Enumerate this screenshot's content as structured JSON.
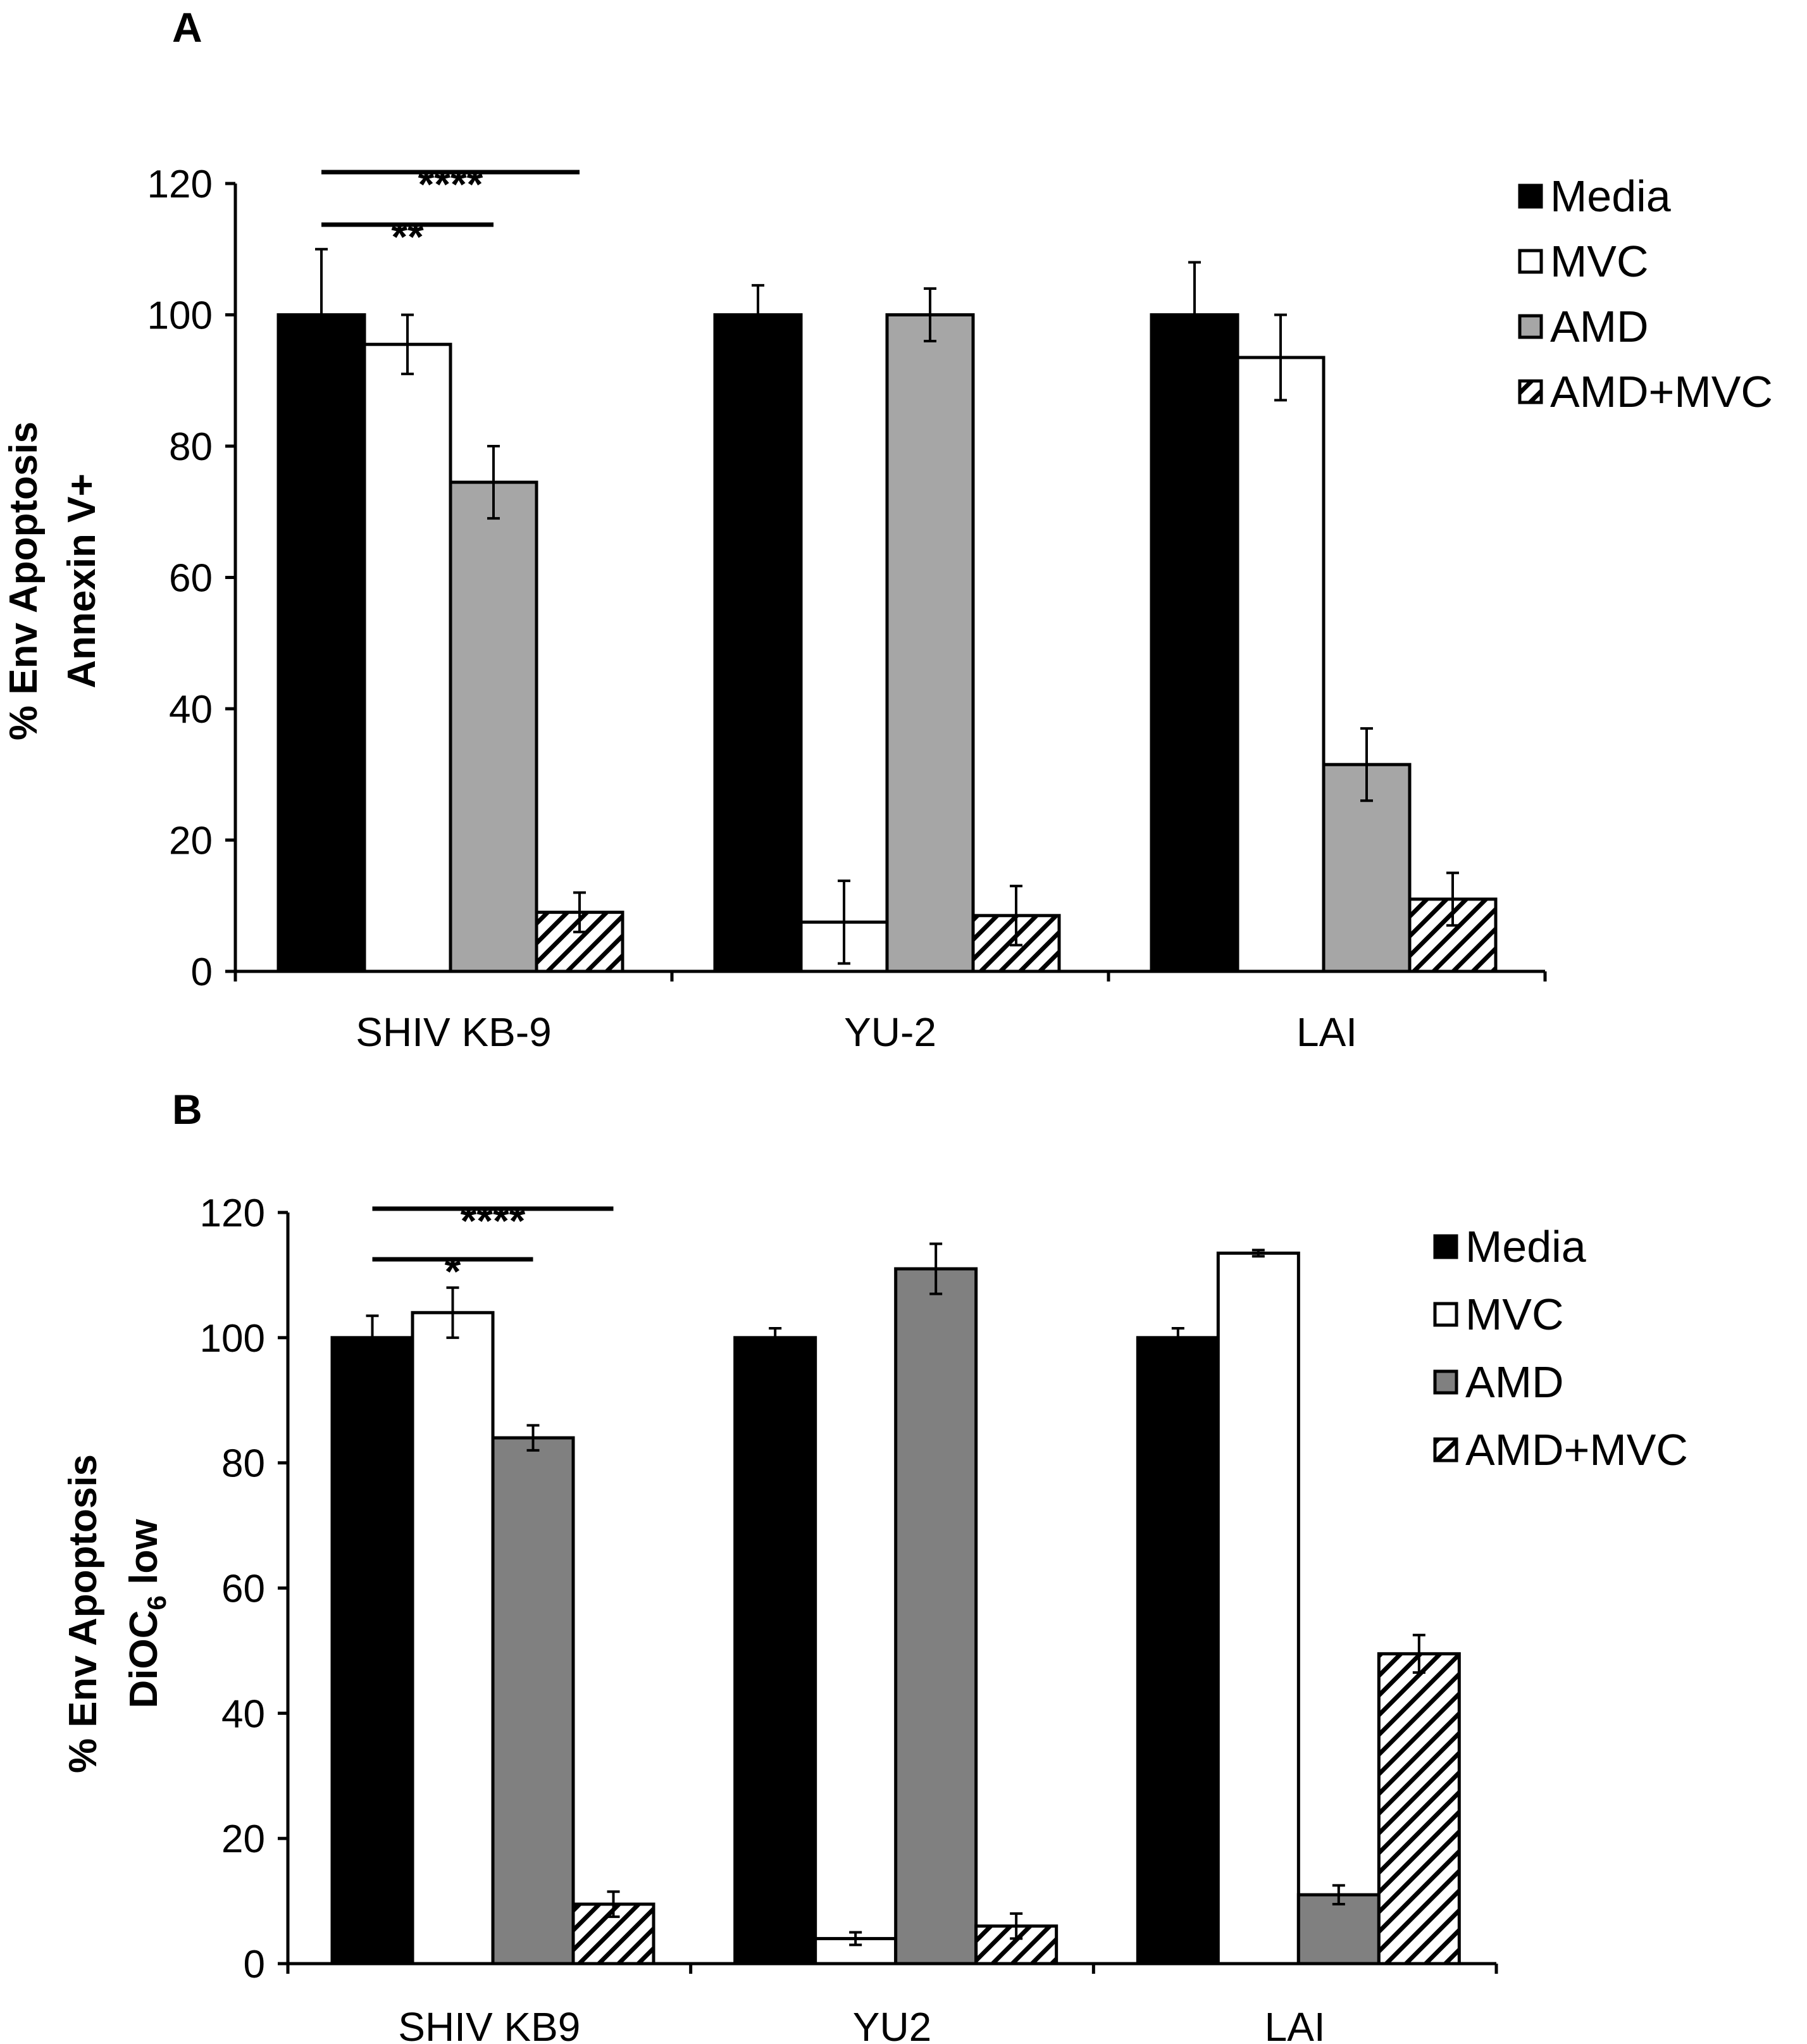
{
  "colors": {
    "Media": "#000000",
    "MVC": "#ffffff",
    "AMD_A": "#a6a6a6",
    "AMD_B": "#808080",
    "AMD+MVC": "hatch"
  },
  "chart_data": [
    {
      "panel": "A",
      "type": "bar",
      "categories": [
        "SHIV KB-9",
        "YU-2",
        "LAI"
      ],
      "ylabel_line1": "% Env Apoptosis",
      "ylabel_line2": "Annexin V+",
      "ylim": [
        0,
        120
      ],
      "yticks": [
        "0",
        "20",
        "40",
        "60",
        "80",
        "100",
        "120"
      ],
      "grid": false,
      "legend_position": "top-right",
      "series": [
        {
          "name": "Media",
          "values": [
            100,
            100,
            100
          ],
          "errors": [
            10,
            4.5,
            8
          ]
        },
        {
          "name": "MVC",
          "values": [
            95.5,
            null,
            93.5
          ],
          "errors": [
            4.5,
            null,
            6.5
          ]
        },
        {
          "name": "AMD",
          "values": [
            74.5,
            100,
            31.5
          ],
          "errors": [
            5.5,
            4,
            5.5
          ]
        },
        {
          "name": "AMD+MVC",
          "values": [
            9,
            8.5,
            11
          ],
          "errors": [
            3,
            4.5,
            4
          ]
        }
      ],
      "extra_bars": [
        {
          "category_index": 1,
          "slot": 1,
          "series": "MVC",
          "value": 7.5,
          "error": 6.3
        }
      ],
      "significance": [
        {
          "label": "****",
          "from_series": 0,
          "to_series": 3,
          "category_index": 0
        },
        {
          "label": "**",
          "from_series": 0,
          "to_series": 2,
          "category_index": 0
        }
      ]
    },
    {
      "panel": "B",
      "type": "bar",
      "categories": [
        "SHIV KB9",
        "YU2",
        "LAI"
      ],
      "ylabel_line1": "% Env Apoptosis",
      "ylabel_line2_pre": "DiOC",
      "ylabel_line2_sub": "6",
      "ylabel_line2_post": " low",
      "ylim": [
        0,
        120
      ],
      "yticks": [
        "0",
        "20",
        "40",
        "60",
        "80",
        "100",
        "120"
      ],
      "grid": false,
      "legend_position": "top-right",
      "series": [
        {
          "name": "Media",
          "values": [
            100,
            100,
            100
          ],
          "errors": [
            3.5,
            1.5,
            1.5
          ]
        },
        {
          "name": "MVC",
          "values": [
            104,
            4,
            113.5
          ],
          "errors": [
            4,
            1,
            0.5
          ]
        },
        {
          "name": "AMD",
          "values": [
            84,
            111,
            11
          ],
          "errors": [
            2,
            4,
            1.5
          ]
        },
        {
          "name": "AMD+MVC",
          "values": [
            9.5,
            6,
            49.5
          ],
          "errors": [
            2,
            2,
            3
          ]
        }
      ],
      "significance": [
        {
          "label": "****",
          "from_series": 0,
          "to_series": 3,
          "category_index": 0
        },
        {
          "label": "*",
          "from_series": 0,
          "to_series": 2,
          "category_index": 0
        }
      ]
    }
  ],
  "legend": [
    "Media",
    "MVC",
    "AMD",
    "AMD+MVC"
  ],
  "panels": {
    "a_letter": "A",
    "b_letter": "B"
  }
}
